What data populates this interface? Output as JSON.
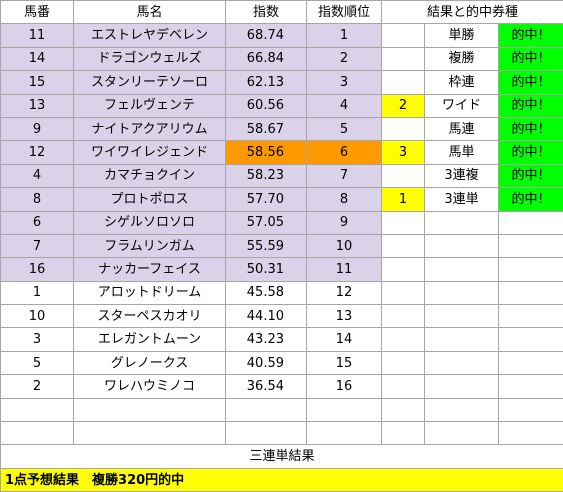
{
  "headers": {
    "umaban": "馬番",
    "name": "馬名",
    "index": "指数",
    "rank": "指数順位",
    "result": "結果と的中券種"
  },
  "horses": [
    {
      "umaban": "11",
      "name": "エストレヤデベレン",
      "index": "68.74",
      "rank": "1"
    },
    {
      "umaban": "14",
      "name": "ドラゴンウェルズ",
      "index": "66.84",
      "rank": "2"
    },
    {
      "umaban": "15",
      "name": "スタンリーテソーロ",
      "index": "62.13",
      "rank": "3"
    },
    {
      "umaban": "13",
      "name": "フェルヴェンテ",
      "index": "60.56",
      "rank": "4"
    },
    {
      "umaban": "9",
      "name": "ナイトアクアリウム",
      "index": "58.67",
      "rank": "5"
    },
    {
      "umaban": "12",
      "name": "ワイワイレジェンド",
      "index": "58.56",
      "rank": "6"
    },
    {
      "umaban": "4",
      "name": "カマチョクイン",
      "index": "58.23",
      "rank": "7"
    },
    {
      "umaban": "8",
      "name": "プロトポロス",
      "index": "57.70",
      "rank": "8"
    },
    {
      "umaban": "6",
      "name": "シゲルソロソロ",
      "index": "57.05",
      "rank": "9"
    },
    {
      "umaban": "7",
      "name": "フラムリンガム",
      "index": "55.59",
      "rank": "10"
    },
    {
      "umaban": "16",
      "name": "ナッカーフェイス",
      "index": "50.31",
      "rank": "11"
    },
    {
      "umaban": "1",
      "name": "アロットドリーム",
      "index": "45.58",
      "rank": "12"
    },
    {
      "umaban": "10",
      "name": "スターペスカオリ",
      "index": "44.10",
      "rank": "13"
    },
    {
      "umaban": "3",
      "name": "エレガントムーン",
      "index": "43.23",
      "rank": "14"
    },
    {
      "umaban": "5",
      "name": "グレノークス",
      "index": "40.59",
      "rank": "15"
    },
    {
      "umaban": "2",
      "name": "ワレハウミノコ",
      "index": "36.54",
      "rank": "16"
    }
  ],
  "results": [
    {
      "mark": "",
      "type": "単勝",
      "hit": "的中！"
    },
    {
      "mark": "",
      "type": "複勝",
      "hit": "的中！"
    },
    {
      "mark": "",
      "type": "枠連",
      "hit": "的中！"
    },
    {
      "mark": "2",
      "type": "ワイド",
      "hit": "的中！"
    },
    {
      "mark": "",
      "type": "馬連",
      "hit": "的中！"
    },
    {
      "mark": "3",
      "type": "馬単",
      "hit": "的中！"
    },
    {
      "mark": "",
      "type": "3連複",
      "hit": "的中！"
    },
    {
      "mark": "1",
      "type": "3連単",
      "hit": "的中！"
    }
  ],
  "sanrentan_label": "三連単結果",
  "banner": "1点予想結果　複勝320円的中",
  "colors": {
    "highlight_rows": "#d9d2e9",
    "highlight_index": "#ff9900",
    "mark": "#ffff00",
    "hit": "#00ff00",
    "banner": "#ffff00"
  }
}
